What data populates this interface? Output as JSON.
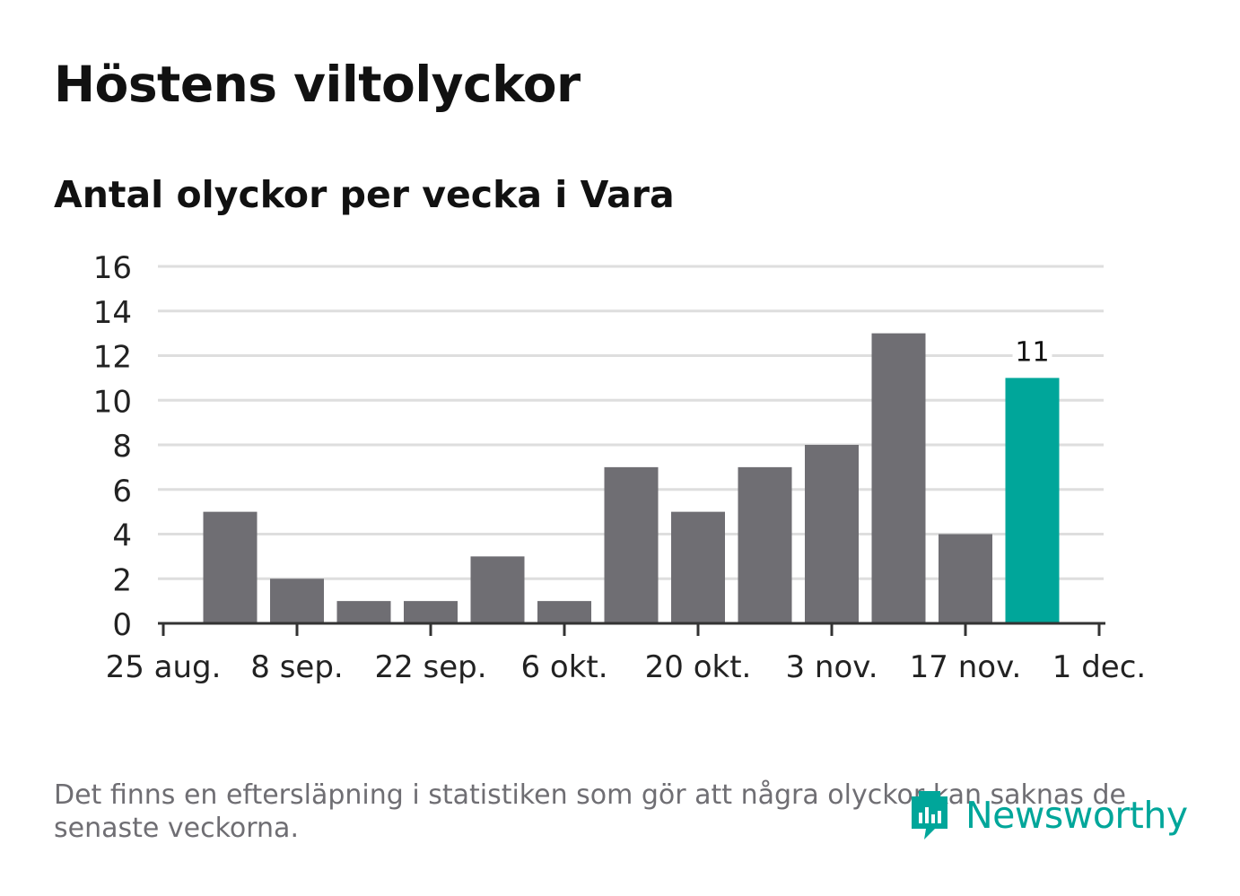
{
  "title": "Höstens viltolyckor",
  "subtitle": "Antal olyckor per vecka i Vara",
  "note": "Det finns en eftersläpning i statistiken som gör att några olyckor kan saknas de senaste veckorna.",
  "brand": "Newsworthy",
  "colors": {
    "bar": "#6f6e73",
    "highlight": "#00a69a",
    "grid": "#dedede",
    "axis": "#333333",
    "text": "#111111",
    "note": "#6f6e73"
  },
  "chart_data": {
    "type": "bar",
    "title": "Höstens viltolyckor",
    "subtitle": "Antal olyckor per vecka i Vara",
    "xlabel": "",
    "ylabel": "",
    "ylim": [
      0,
      16
    ],
    "y_ticks": [
      "0",
      "2",
      "4",
      "6",
      "8",
      "10",
      "12",
      "14",
      "16"
    ],
    "x_tick_labels": [
      "25 aug.",
      "8 sep.",
      "22 sep.",
      "6 okt.",
      "20 okt.",
      "3 nov.",
      "17 nov.",
      "1 dec."
    ],
    "grid": true,
    "legend": "none",
    "values": [
      5,
      2,
      1,
      1,
      3,
      1,
      7,
      5,
      7,
      8,
      13,
      4,
      11
    ],
    "highlight_index": 12,
    "data_labels": {
      "12": "11"
    }
  }
}
